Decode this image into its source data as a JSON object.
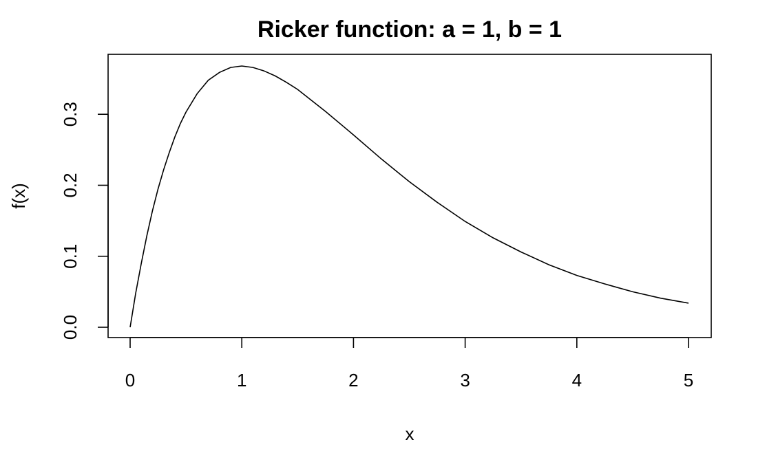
{
  "chart_data": {
    "type": "line",
    "title": "Ricker function: a = 1, b = 1",
    "xlabel": "x",
    "ylabel": "f(x)",
    "xlim": [
      0,
      5
    ],
    "ylim": [
      0,
      0.368
    ],
    "x_ticks": [
      0,
      1,
      2,
      3,
      4,
      5
    ],
    "x_tick_labels": [
      "0",
      "1",
      "2",
      "3",
      "4",
      "5"
    ],
    "y_ticks": [
      0,
      0.1,
      0.2,
      0.3
    ],
    "y_tick_labels": [
      "0.0",
      "0.1",
      "0.2",
      "0.3"
    ],
    "grid": false,
    "legend": "none",
    "series": [
      {
        "x": [
          0,
          0.05,
          0.1,
          0.15,
          0.2,
          0.25,
          0.3,
          0.35,
          0.4,
          0.45,
          0.5,
          0.6,
          0.7,
          0.8,
          0.9,
          1.0,
          1.1,
          1.2,
          1.3,
          1.4,
          1.5,
          1.75,
          2.0,
          2.25,
          2.5,
          2.75,
          3.0,
          3.25,
          3.5,
          3.75,
          4.0,
          4.25,
          4.5,
          4.75,
          5.0
        ],
        "y": [
          0,
          0.048,
          0.09,
          0.129,
          0.164,
          0.195,
          0.222,
          0.246,
          0.268,
          0.287,
          0.303,
          0.329,
          0.348,
          0.359,
          0.366,
          0.368,
          0.366,
          0.361,
          0.354,
          0.345,
          0.335,
          0.304,
          0.271,
          0.237,
          0.205,
          0.176,
          0.149,
          0.126,
          0.106,
          0.088,
          0.073,
          0.061,
          0.05,
          0.041,
          0.034
        ]
      }
    ]
  }
}
